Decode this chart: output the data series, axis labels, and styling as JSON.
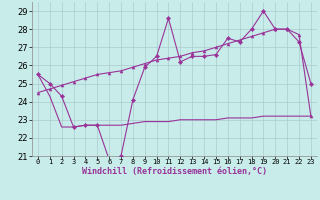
{
  "background_color": "#c8ecea",
  "grid_color": "#aacccc",
  "line_color": "#993399",
  "x": [
    0,
    1,
    2,
    3,
    4,
    5,
    6,
    7,
    8,
    9,
    10,
    11,
    12,
    13,
    14,
    15,
    16,
    17,
    18,
    19,
    20,
    21,
    22,
    23
  ],
  "y_main": [
    25.5,
    25.0,
    24.3,
    22.6,
    22.7,
    22.7,
    20.8,
    21.0,
    24.1,
    25.9,
    26.5,
    28.6,
    26.2,
    26.5,
    26.5,
    26.6,
    27.5,
    27.3,
    28.0,
    29.0,
    28.0,
    28.0,
    27.3,
    25.0
  ],
  "y_smooth": [
    24.5,
    24.7,
    24.9,
    25.1,
    25.3,
    25.5,
    25.6,
    25.7,
    25.9,
    26.1,
    26.3,
    26.4,
    26.5,
    26.7,
    26.8,
    27.0,
    27.2,
    27.4,
    27.6,
    27.8,
    28.0,
    28.0,
    27.7,
    23.2
  ],
  "y_flat": [
    25.5,
    24.3,
    22.6,
    22.6,
    22.7,
    22.7,
    22.7,
    22.7,
    22.8,
    22.9,
    22.9,
    22.9,
    23.0,
    23.0,
    23.0,
    23.0,
    23.1,
    23.1,
    23.1,
    23.2,
    23.2,
    23.2,
    23.2,
    23.2
  ],
  "ylim": [
    21,
    29.5
  ],
  "yticks": [
    21,
    22,
    23,
    24,
    25,
    26,
    27,
    28,
    29
  ],
  "xlim": [
    -0.5,
    23.5
  ],
  "xlabel": "Windchill (Refroidissement éolien,°C)"
}
